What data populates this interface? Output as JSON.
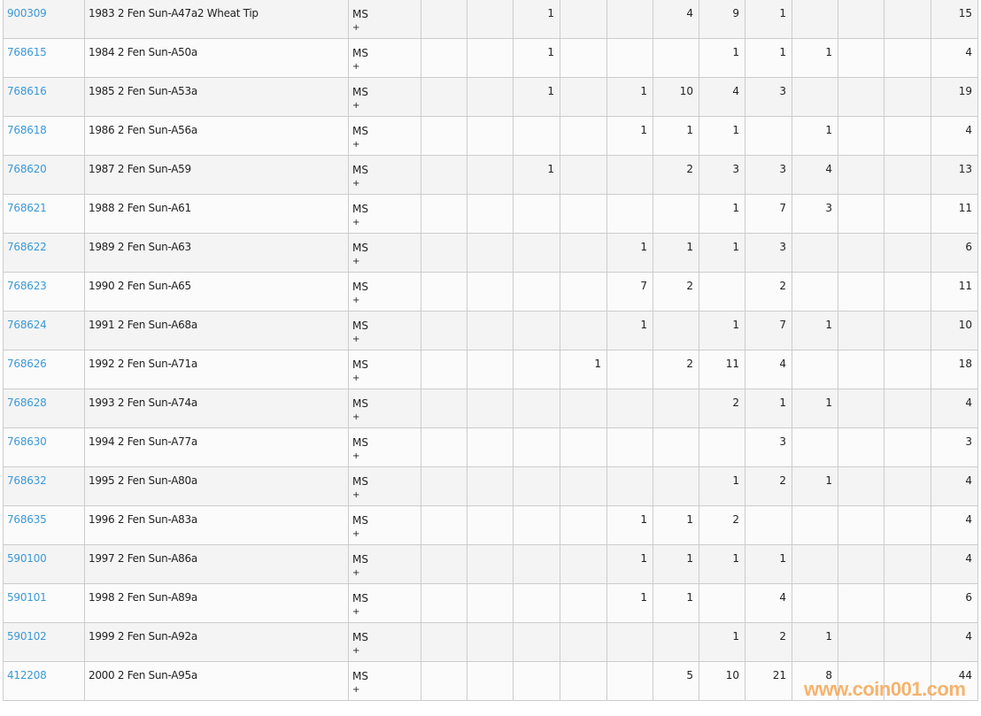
{
  "table": {
    "rows": [
      {
        "id": "900309",
        "desc": "1983 2 Fen Sun-A47a2 Wheat Tip",
        "grade": "MS",
        "plus": "+",
        "counts": [
          "",
          "",
          "1",
          "",
          "",
          "4",
          "9",
          "1",
          "",
          "",
          ""
        ],
        "total": "15"
      },
      {
        "id": "768615",
        "desc": "1984 2 Fen Sun-A50a",
        "grade": "MS",
        "plus": "+",
        "counts": [
          "",
          "",
          "1",
          "",
          "",
          "",
          "1",
          "1",
          "1",
          "",
          ""
        ],
        "total": "4"
      },
      {
        "id": "768616",
        "desc": "1985 2 Fen Sun-A53a",
        "grade": "MS",
        "plus": "+",
        "counts": [
          "",
          "",
          "1",
          "",
          "1",
          "10",
          "4",
          "3",
          "",
          "",
          ""
        ],
        "total": "19"
      },
      {
        "id": "768618",
        "desc": "1986 2 Fen Sun-A56a",
        "grade": "MS",
        "plus": "+",
        "counts": [
          "",
          "",
          "",
          "",
          "1",
          "1",
          "1",
          "",
          "1",
          "",
          ""
        ],
        "total": "4"
      },
      {
        "id": "768620",
        "desc": "1987 2 Fen Sun-A59",
        "grade": "MS",
        "plus": "+",
        "counts": [
          "",
          "",
          "1",
          "",
          "",
          "2",
          "3",
          "3",
          "4",
          "",
          ""
        ],
        "total": "13"
      },
      {
        "id": "768621",
        "desc": "1988 2 Fen Sun-A61",
        "grade": "MS",
        "plus": "+",
        "counts": [
          "",
          "",
          "",
          "",
          "",
          "",
          "1",
          "7",
          "3",
          "",
          ""
        ],
        "total": "11"
      },
      {
        "id": "768622",
        "desc": "1989 2 Fen Sun-A63",
        "grade": "MS",
        "plus": "+",
        "counts": [
          "",
          "",
          "",
          "",
          "1",
          "1",
          "1",
          "3",
          "",
          "",
          ""
        ],
        "total": "6"
      },
      {
        "id": "768623",
        "desc": "1990 2 Fen Sun-A65",
        "grade": "MS",
        "plus": "+",
        "counts": [
          "",
          "",
          "",
          "",
          "7",
          "2",
          "",
          "2",
          "",
          "",
          ""
        ],
        "total": "11"
      },
      {
        "id": "768624",
        "desc": "1991 2 Fen Sun-A68a",
        "grade": "MS",
        "plus": "+",
        "counts": [
          "",
          "",
          "",
          "",
          "1",
          "",
          "1",
          "7",
          "1",
          "",
          ""
        ],
        "total": "10"
      },
      {
        "id": "768626",
        "desc": "1992 2 Fen Sun-A71a",
        "grade": "MS",
        "plus": "+",
        "counts": [
          "",
          "",
          "",
          "1",
          "",
          "2",
          "11",
          "4",
          "",
          "",
          ""
        ],
        "total": "18"
      },
      {
        "id": "768628",
        "desc": "1993 2 Fen Sun-A74a",
        "grade": "MS",
        "plus": "+",
        "counts": [
          "",
          "",
          "",
          "",
          "",
          "",
          "2",
          "1",
          "1",
          "",
          ""
        ],
        "total": "4"
      },
      {
        "id": "768630",
        "desc": "1994 2 Fen Sun-A77a",
        "grade": "MS",
        "plus": "+",
        "counts": [
          "",
          "",
          "",
          "",
          "",
          "",
          "",
          "3",
          "",
          "",
          ""
        ],
        "total": "3"
      },
      {
        "id": "768632",
        "desc": "1995 2 Fen Sun-A80a",
        "grade": "MS",
        "plus": "+",
        "counts": [
          "",
          "",
          "",
          "",
          "",
          "",
          "1",
          "2",
          "1",
          "",
          ""
        ],
        "total": "4"
      },
      {
        "id": "768635",
        "desc": "1996 2 Fen Sun-A83a",
        "grade": "MS",
        "plus": "+",
        "counts": [
          "",
          "",
          "",
          "",
          "1",
          "1",
          "2",
          "",
          "",
          "",
          ""
        ],
        "total": "4"
      },
      {
        "id": "590100",
        "desc": "1997 2 Fen Sun-A86a",
        "grade": "MS",
        "plus": "+",
        "counts": [
          "",
          "",
          "",
          "",
          "1",
          "1",
          "1",
          "1",
          "",
          "",
          ""
        ],
        "total": "4"
      },
      {
        "id": "590101",
        "desc": "1998 2 Fen Sun-A89a",
        "grade": "MS",
        "plus": "+",
        "counts": [
          "",
          "",
          "",
          "",
          "1",
          "1",
          "",
          "4",
          "",
          "",
          ""
        ],
        "total": "6"
      },
      {
        "id": "590102",
        "desc": "1999 2 Fen Sun-A92a",
        "grade": "MS",
        "plus": "+",
        "counts": [
          "",
          "",
          "",
          "",
          "",
          "",
          "1",
          "2",
          "1",
          "",
          ""
        ],
        "total": "4"
      },
      {
        "id": "412208",
        "desc": "2000 2 Fen Sun-A95a",
        "grade": "MS",
        "plus": "+",
        "counts": [
          "",
          "",
          "",
          "",
          "",
          "5",
          "10",
          "21",
          "8",
          "",
          ""
        ],
        "total": "44"
      }
    ]
  },
  "watermark": "www.coin001.com",
  "colors": {
    "link": "#3b99d6",
    "watermark": "#f5a24a",
    "border": "#cccccc"
  }
}
